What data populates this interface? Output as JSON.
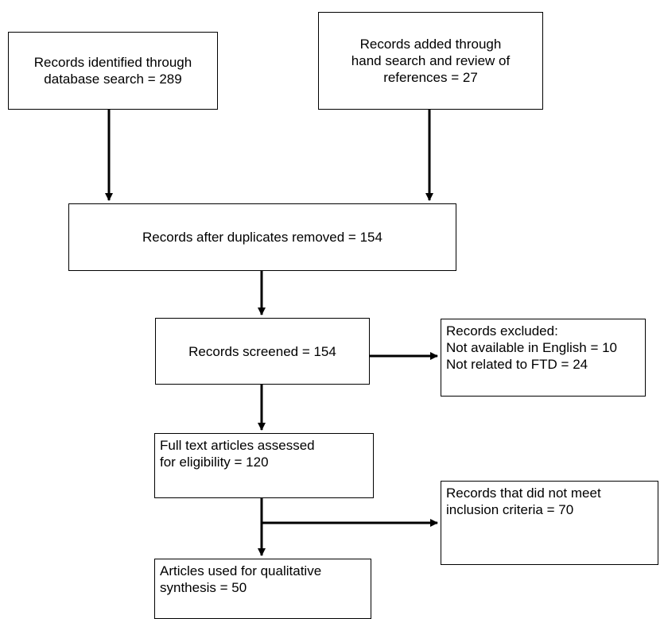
{
  "boxes": {
    "database_search": {
      "lines": [
        "Records identified through",
        "database search = 289"
      ]
    },
    "hand_search": {
      "lines": [
        "Records added through",
        "hand search and review of",
        "references = 27"
      ]
    },
    "duplicates_removed": {
      "lines": [
        "Records after duplicates removed = 154"
      ]
    },
    "screened": {
      "lines": [
        "Records screened = 154"
      ]
    },
    "excluded": {
      "lines": [
        "Records excluded:",
        "Not available in English = 10",
        "Not related to FTD = 24"
      ]
    },
    "full_text": {
      "lines": [
        "Full text articles assessed",
        "for eligibility = 120"
      ]
    },
    "not_meet_criteria": {
      "lines": [
        "Records that did not meet",
        "inclusion criteria = 70"
      ]
    },
    "qualitative_synthesis": {
      "lines": [
        "Articles used for qualitative",
        "synthesis = 50"
      ]
    }
  },
  "colors": {
    "stroke": "#000000",
    "background": "#ffffff"
  }
}
